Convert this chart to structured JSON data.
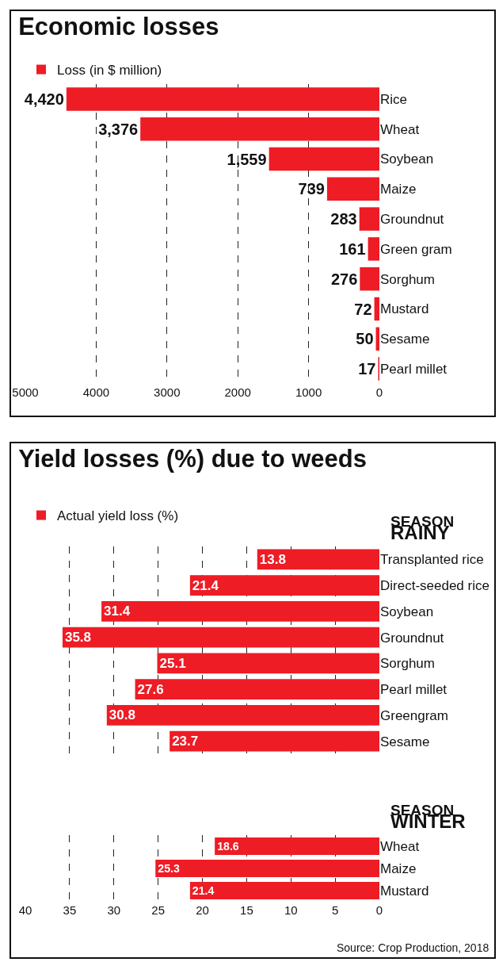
{
  "chart_data": [
    {
      "type": "bar",
      "title": "Economic losses",
      "orientation": "horizontal",
      "categories": [
        "Rice",
        "Wheat",
        "Soybean",
        "Maize",
        "Groundnut",
        "Green gram",
        "Sorghum",
        "Mustard",
        "Sesame",
        "Pearl millet"
      ],
      "series": [
        {
          "name": "Loss (in $ million)",
          "color": "#ee1c25",
          "values": [
            4420,
            3376,
            1559,
            739,
            283,
            161,
            276,
            72,
            50,
            17
          ]
        }
      ],
      "value_labels": [
        "4,420",
        "3,376",
        "1,559",
        "739",
        "283",
        "161",
        "276",
        "72",
        "50",
        "17"
      ],
      "xlim": [
        5000,
        0
      ],
      "xticks": [
        5000,
        4000,
        3000,
        2000,
        1000,
        0
      ],
      "grid": "x",
      "legend": "top left"
    },
    {
      "type": "bar",
      "title": "Yield losses (%) due to weeds",
      "subtitle": "SEASON\nRAINY",
      "orientation": "horizontal",
      "categories": [
        "Transplanted rice",
        "Direct-seeded rice",
        "Soybean",
        "Groundnut",
        "Sorghum",
        "Pearl millet",
        "Greengram",
        "Sesame"
      ],
      "series": [
        {
          "name": "Actual yield loss (%)",
          "color": "#ee1c25",
          "values": [
            13.8,
            21.4,
            31.4,
            35.8,
            25.1,
            27.6,
            30.8,
            23.7
          ]
        }
      ],
      "data_labels": true,
      "xlim": [
        40,
        0
      ],
      "xticks": [
        40,
        35,
        30,
        25,
        20,
        15,
        10,
        5,
        0
      ],
      "grid": "x",
      "legend": "top left",
      "tick_labels": "y"
    },
    {
      "type": "bar",
      "subtitle": "SEASON\nWINTER",
      "orientation": "horizontal",
      "categories": [
        "Wheat",
        "Maize",
        "Mustard"
      ],
      "series": [
        {
          "color": "#ee1c25",
          "values": [
            18.6,
            25.3,
            21.4
          ]
        }
      ],
      "data_labels": true,
      "xlim": [
        40,
        0
      ],
      "xticks": [
        40,
        35,
        30,
        25,
        20,
        15,
        10,
        5,
        0
      ],
      "grid": "x",
      "annotations": [
        "Source: Crop Production, 2018"
      ]
    }
  ]
}
